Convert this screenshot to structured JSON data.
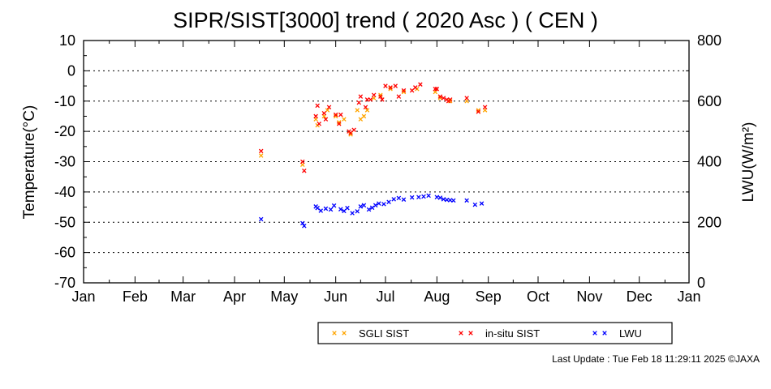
{
  "chart_data": {
    "type": "scatter",
    "title": "SIPR/SIST[3000] trend ( 2020 Asc ) ( CEN )",
    "ylabel_left": "Temperature(°C)",
    "ylabel_right": "LWU(W/m²)",
    "ylim_left": [
      -70,
      10
    ],
    "ylim_right": [
      0,
      800
    ],
    "yticks_left": [
      "10",
      "0",
      "-10",
      "-20",
      "-30",
      "-40",
      "-50",
      "-60",
      "-70"
    ],
    "yticks_right": [
      "800",
      "600",
      "400",
      "200",
      "0"
    ],
    "xlim_doy": [
      1,
      366
    ],
    "month_labels": [
      "Jan",
      "Feb",
      "Mar",
      "Apr",
      "May",
      "Jun",
      "Jul",
      "Aug",
      "Sep",
      "Oct",
      "Nov",
      "Dec",
      "Jan"
    ],
    "grid": "horizontal dotted",
    "legend_position": "bottom-right",
    "series": [
      {
        "name": "SGLI SIST",
        "axis": "left",
        "color": "#ffa500",
        "points": [
          [
            108,
            -28
          ],
          [
            133,
            -31
          ],
          [
            141,
            -16
          ],
          [
            142,
            -18
          ],
          [
            146,
            -15
          ],
          [
            148,
            -13
          ],
          [
            153,
            -15
          ],
          [
            155,
            -17
          ],
          [
            158,
            -16
          ],
          [
            162,
            -21
          ],
          [
            166,
            -13
          ],
          [
            168,
            -16
          ],
          [
            170,
            -15
          ],
          [
            172,
            -13
          ],
          [
            176,
            -9
          ],
          [
            180,
            -8
          ],
          [
            186,
            -6
          ],
          [
            194,
            -7
          ],
          [
            202,
            -6
          ],
          [
            213,
            -7
          ],
          [
            216,
            -9
          ],
          [
            222,
            -10
          ],
          [
            232,
            -10
          ],
          [
            239,
            -13
          ],
          [
            243,
            -13
          ]
        ]
      },
      {
        "name": "in-situ SIST",
        "axis": "left",
        "color": "#ff0000",
        "points": [
          [
            108,
            -26.5
          ],
          [
            133,
            -30
          ],
          [
            134,
            -33
          ],
          [
            141,
            -15
          ],
          [
            142,
            -11.5
          ],
          [
            143,
            -17.5
          ],
          [
            146,
            -14
          ],
          [
            147,
            -16
          ],
          [
            149,
            -12
          ],
          [
            153,
            -14.5
          ],
          [
            155,
            -17.5
          ],
          [
            156,
            -14.5
          ],
          [
            161,
            -20
          ],
          [
            162,
            -20.5
          ],
          [
            164,
            -19.5
          ],
          [
            167,
            -10.5
          ],
          [
            168,
            -8.5
          ],
          [
            171,
            -12
          ],
          [
            172,
            -9.5
          ],
          [
            174,
            -9.5
          ],
          [
            176,
            -8
          ],
          [
            180,
            -8.5
          ],
          [
            181,
            -9.5
          ],
          [
            183,
            -5
          ],
          [
            186,
            -5.5
          ],
          [
            189,
            -5
          ],
          [
            191,
            -8.5
          ],
          [
            194,
            -6.5
          ],
          [
            199,
            -6.5
          ],
          [
            201,
            -5.5
          ],
          [
            204,
            -4.5
          ],
          [
            213,
            -6
          ],
          [
            214,
            -6
          ],
          [
            216,
            -8.5
          ],
          [
            218,
            -9
          ],
          [
            220,
            -9.5
          ],
          [
            221,
            -10
          ],
          [
            222,
            -9.5
          ],
          [
            232,
            -9
          ],
          [
            239,
            -13.5
          ],
          [
            243,
            -12
          ]
        ]
      },
      {
        "name": "LWU",
        "axis": "right",
        "color": "#0000ff",
        "points": [
          [
            108,
            210
          ],
          [
            133,
            197
          ],
          [
            134,
            188
          ],
          [
            141,
            252
          ],
          [
            142,
            247
          ],
          [
            144,
            238
          ],
          [
            147,
            245
          ],
          [
            150,
            242
          ],
          [
            152,
            255
          ],
          [
            156,
            243
          ],
          [
            158,
            237
          ],
          [
            160,
            247
          ],
          [
            163,
            230
          ],
          [
            166,
            236
          ],
          [
            168,
            252
          ],
          [
            170,
            256
          ],
          [
            173,
            242
          ],
          [
            175,
            248
          ],
          [
            177,
            256
          ],
          [
            179,
            262
          ],
          [
            182,
            260
          ],
          [
            185,
            267
          ],
          [
            188,
            276
          ],
          [
            191,
            280
          ],
          [
            194,
            275
          ],
          [
            199,
            282
          ],
          [
            203,
            283
          ],
          [
            206,
            285
          ],
          [
            209,
            288
          ],
          [
            214,
            283
          ],
          [
            216,
            281
          ],
          [
            218,
            276
          ],
          [
            220,
            274
          ],
          [
            222,
            273
          ],
          [
            224,
            272
          ],
          [
            232,
            272
          ],
          [
            237,
            258
          ],
          [
            241,
            262
          ]
        ]
      }
    ]
  },
  "footer": "Last Update : Tue Feb 18 11:29:11 2025 ©JAXA"
}
